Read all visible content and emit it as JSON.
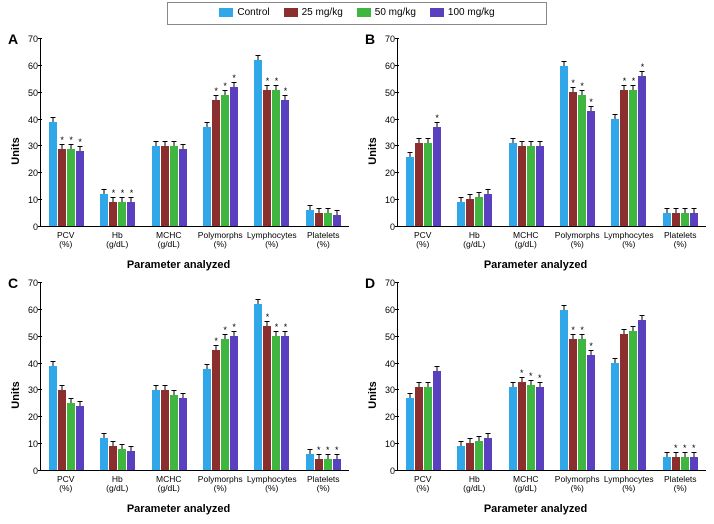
{
  "legend": {
    "items": [
      {
        "label": "Control",
        "color": "#2fa7e8"
      },
      {
        "label": "25 mg/kg",
        "color": "#8b2e2e"
      },
      {
        "label": "50 mg/kg",
        "color": "#3fb63f"
      },
      {
        "label": "100 mg/kg",
        "color": "#5a3fbf"
      }
    ]
  },
  "axis": {
    "ylabel": "Units",
    "xlabel": "Parameter analyzed",
    "ymax": 70,
    "ytick_step": 10,
    "tick_fontsize": 9,
    "label_fontsize": 11
  },
  "categories": [
    {
      "l1": "PCV",
      "l2": "(%)"
    },
    {
      "l1": "Hb",
      "l2": "(g/dL)"
    },
    {
      "l1": "MCHC",
      "l2": "(g/dL)"
    },
    {
      "l1": "Polymorphs",
      "l2": "(%)"
    },
    {
      "l1": "Lymphocytes",
      "l2": "(%)"
    },
    {
      "l1": "Platelets",
      "l2": "(%)"
    }
  ],
  "colors": {
    "control": "#2fa7e8",
    "d25": "#8b2e2e",
    "d50": "#3fb63f",
    "d100": "#5a3fbf",
    "background": "#ffffff",
    "axis": "#000000"
  },
  "panels": {
    "A": {
      "label": "A",
      "data": [
        {
          "v": [
            39,
            29,
            29,
            28
          ],
          "sig": [
            false,
            true,
            true,
            true
          ]
        },
        {
          "v": [
            12,
            9,
            9,
            9
          ],
          "sig": [
            false,
            true,
            true,
            true
          ]
        },
        {
          "v": [
            30,
            30,
            30,
            29
          ],
          "sig": [
            false,
            false,
            false,
            false
          ]
        },
        {
          "v": [
            37,
            47,
            49,
            52
          ],
          "sig": [
            false,
            true,
            true,
            true
          ]
        },
        {
          "v": [
            62,
            51,
            51,
            47
          ],
          "sig": [
            false,
            true,
            true,
            true
          ]
        },
        {
          "v": [
            6,
            5,
            5,
            4
          ],
          "sig": [
            false,
            false,
            false,
            false
          ]
        }
      ]
    },
    "B": {
      "label": "B",
      "data": [
        {
          "v": [
            26,
            31,
            31,
            37
          ],
          "sig": [
            false,
            false,
            false,
            true
          ]
        },
        {
          "v": [
            9,
            10,
            11,
            12
          ],
          "sig": [
            false,
            false,
            false,
            false
          ]
        },
        {
          "v": [
            31,
            30,
            30,
            30
          ],
          "sig": [
            false,
            false,
            false,
            false
          ]
        },
        {
          "v": [
            60,
            50,
            49,
            43
          ],
          "sig": [
            false,
            true,
            true,
            true
          ]
        },
        {
          "v": [
            40,
            51,
            51,
            56
          ],
          "sig": [
            false,
            true,
            true,
            true
          ]
        },
        {
          "v": [
            5,
            5,
            5,
            5
          ],
          "sig": [
            false,
            false,
            false,
            false
          ]
        }
      ]
    },
    "C": {
      "label": "C",
      "data": [
        {
          "v": [
            39,
            30,
            25,
            24
          ],
          "sig": [
            false,
            false,
            false,
            false
          ]
        },
        {
          "v": [
            12,
            9,
            8,
            7
          ],
          "sig": [
            false,
            false,
            false,
            false
          ]
        },
        {
          "v": [
            30,
            30,
            28,
            27
          ],
          "sig": [
            false,
            false,
            false,
            false
          ]
        },
        {
          "v": [
            38,
            45,
            49,
            50
          ],
          "sig": [
            false,
            true,
            true,
            true
          ]
        },
        {
          "v": [
            62,
            54,
            50,
            50
          ],
          "sig": [
            false,
            true,
            true,
            true
          ]
        },
        {
          "v": [
            6,
            4,
            4,
            4
          ],
          "sig": [
            false,
            true,
            true,
            true
          ]
        }
      ]
    },
    "D": {
      "label": "D",
      "data": [
        {
          "v": [
            27,
            31,
            31,
            37
          ],
          "sig": [
            false,
            false,
            false,
            false
          ]
        },
        {
          "v": [
            9,
            10,
            11,
            12
          ],
          "sig": [
            false,
            false,
            false,
            false
          ]
        },
        {
          "v": [
            31,
            33,
            32,
            31
          ],
          "sig": [
            false,
            true,
            true,
            true
          ]
        },
        {
          "v": [
            60,
            49,
            49,
            43
          ],
          "sig": [
            false,
            true,
            true,
            true
          ]
        },
        {
          "v": [
            40,
            51,
            52,
            56
          ],
          "sig": [
            false,
            false,
            false,
            false
          ]
        },
        {
          "v": [
            5,
            5,
            5,
            5
          ],
          "sig": [
            false,
            true,
            true,
            true
          ]
        }
      ]
    }
  }
}
